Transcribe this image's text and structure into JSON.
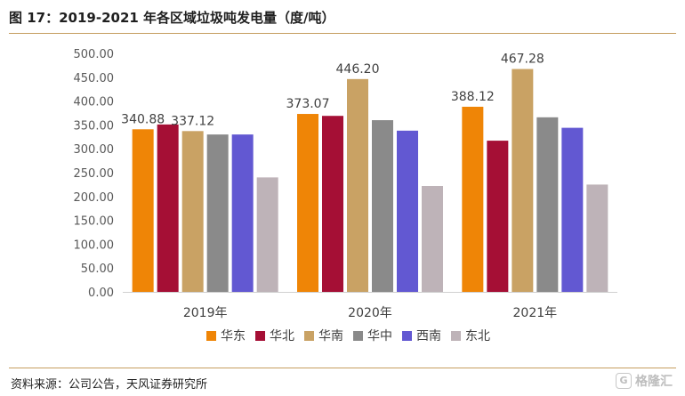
{
  "header": {
    "title": "图 17：2019-2021 年各区域垃圾吨发电量（度/吨）"
  },
  "footer": {
    "source": "资料来源：公司公告，天风证券研究所",
    "watermark": "格隆汇"
  },
  "colors": {
    "rule": "#c59d5f"
  },
  "chart_data": {
    "type": "bar",
    "title": "",
    "xlabel": "",
    "ylabel": "",
    "categories": [
      "2019年",
      "2020年",
      "2021年"
    ],
    "ylim": [
      0,
      500
    ],
    "yticks": [
      "0.00",
      "50.00",
      "100.00",
      "150.00",
      "200.00",
      "250.00",
      "300.00",
      "350.00",
      "400.00",
      "450.00",
      "500.00"
    ],
    "grid": false,
    "legend": "bottom",
    "series": [
      {
        "name": "华东",
        "color": "#ef8506",
        "values": [
          340.88,
          373.07,
          388.12
        ],
        "labels": [
          "340.88",
          "373.07",
          "388.12"
        ]
      },
      {
        "name": "华北",
        "color": "#a50f35",
        "values": [
          351,
          369,
          317
        ],
        "labels": [
          null,
          null,
          null
        ]
      },
      {
        "name": "华南",
        "color": "#c9a264",
        "values": [
          337.12,
          446.2,
          467.28
        ],
        "labels": [
          "337.12",
          "446.20",
          "467.28"
        ]
      },
      {
        "name": "华中",
        "color": "#8a8a8a",
        "values": [
          330,
          360,
          366
        ],
        "labels": [
          null,
          null,
          null
        ]
      },
      {
        "name": "西南",
        "color": "#6258d2",
        "values": [
          330,
          338,
          344
        ],
        "labels": [
          null,
          null,
          null
        ]
      },
      {
        "name": "东北",
        "color": "#beb3b8",
        "values": [
          240,
          222,
          225
        ],
        "labels": [
          null,
          null,
          null
        ]
      }
    ]
  }
}
